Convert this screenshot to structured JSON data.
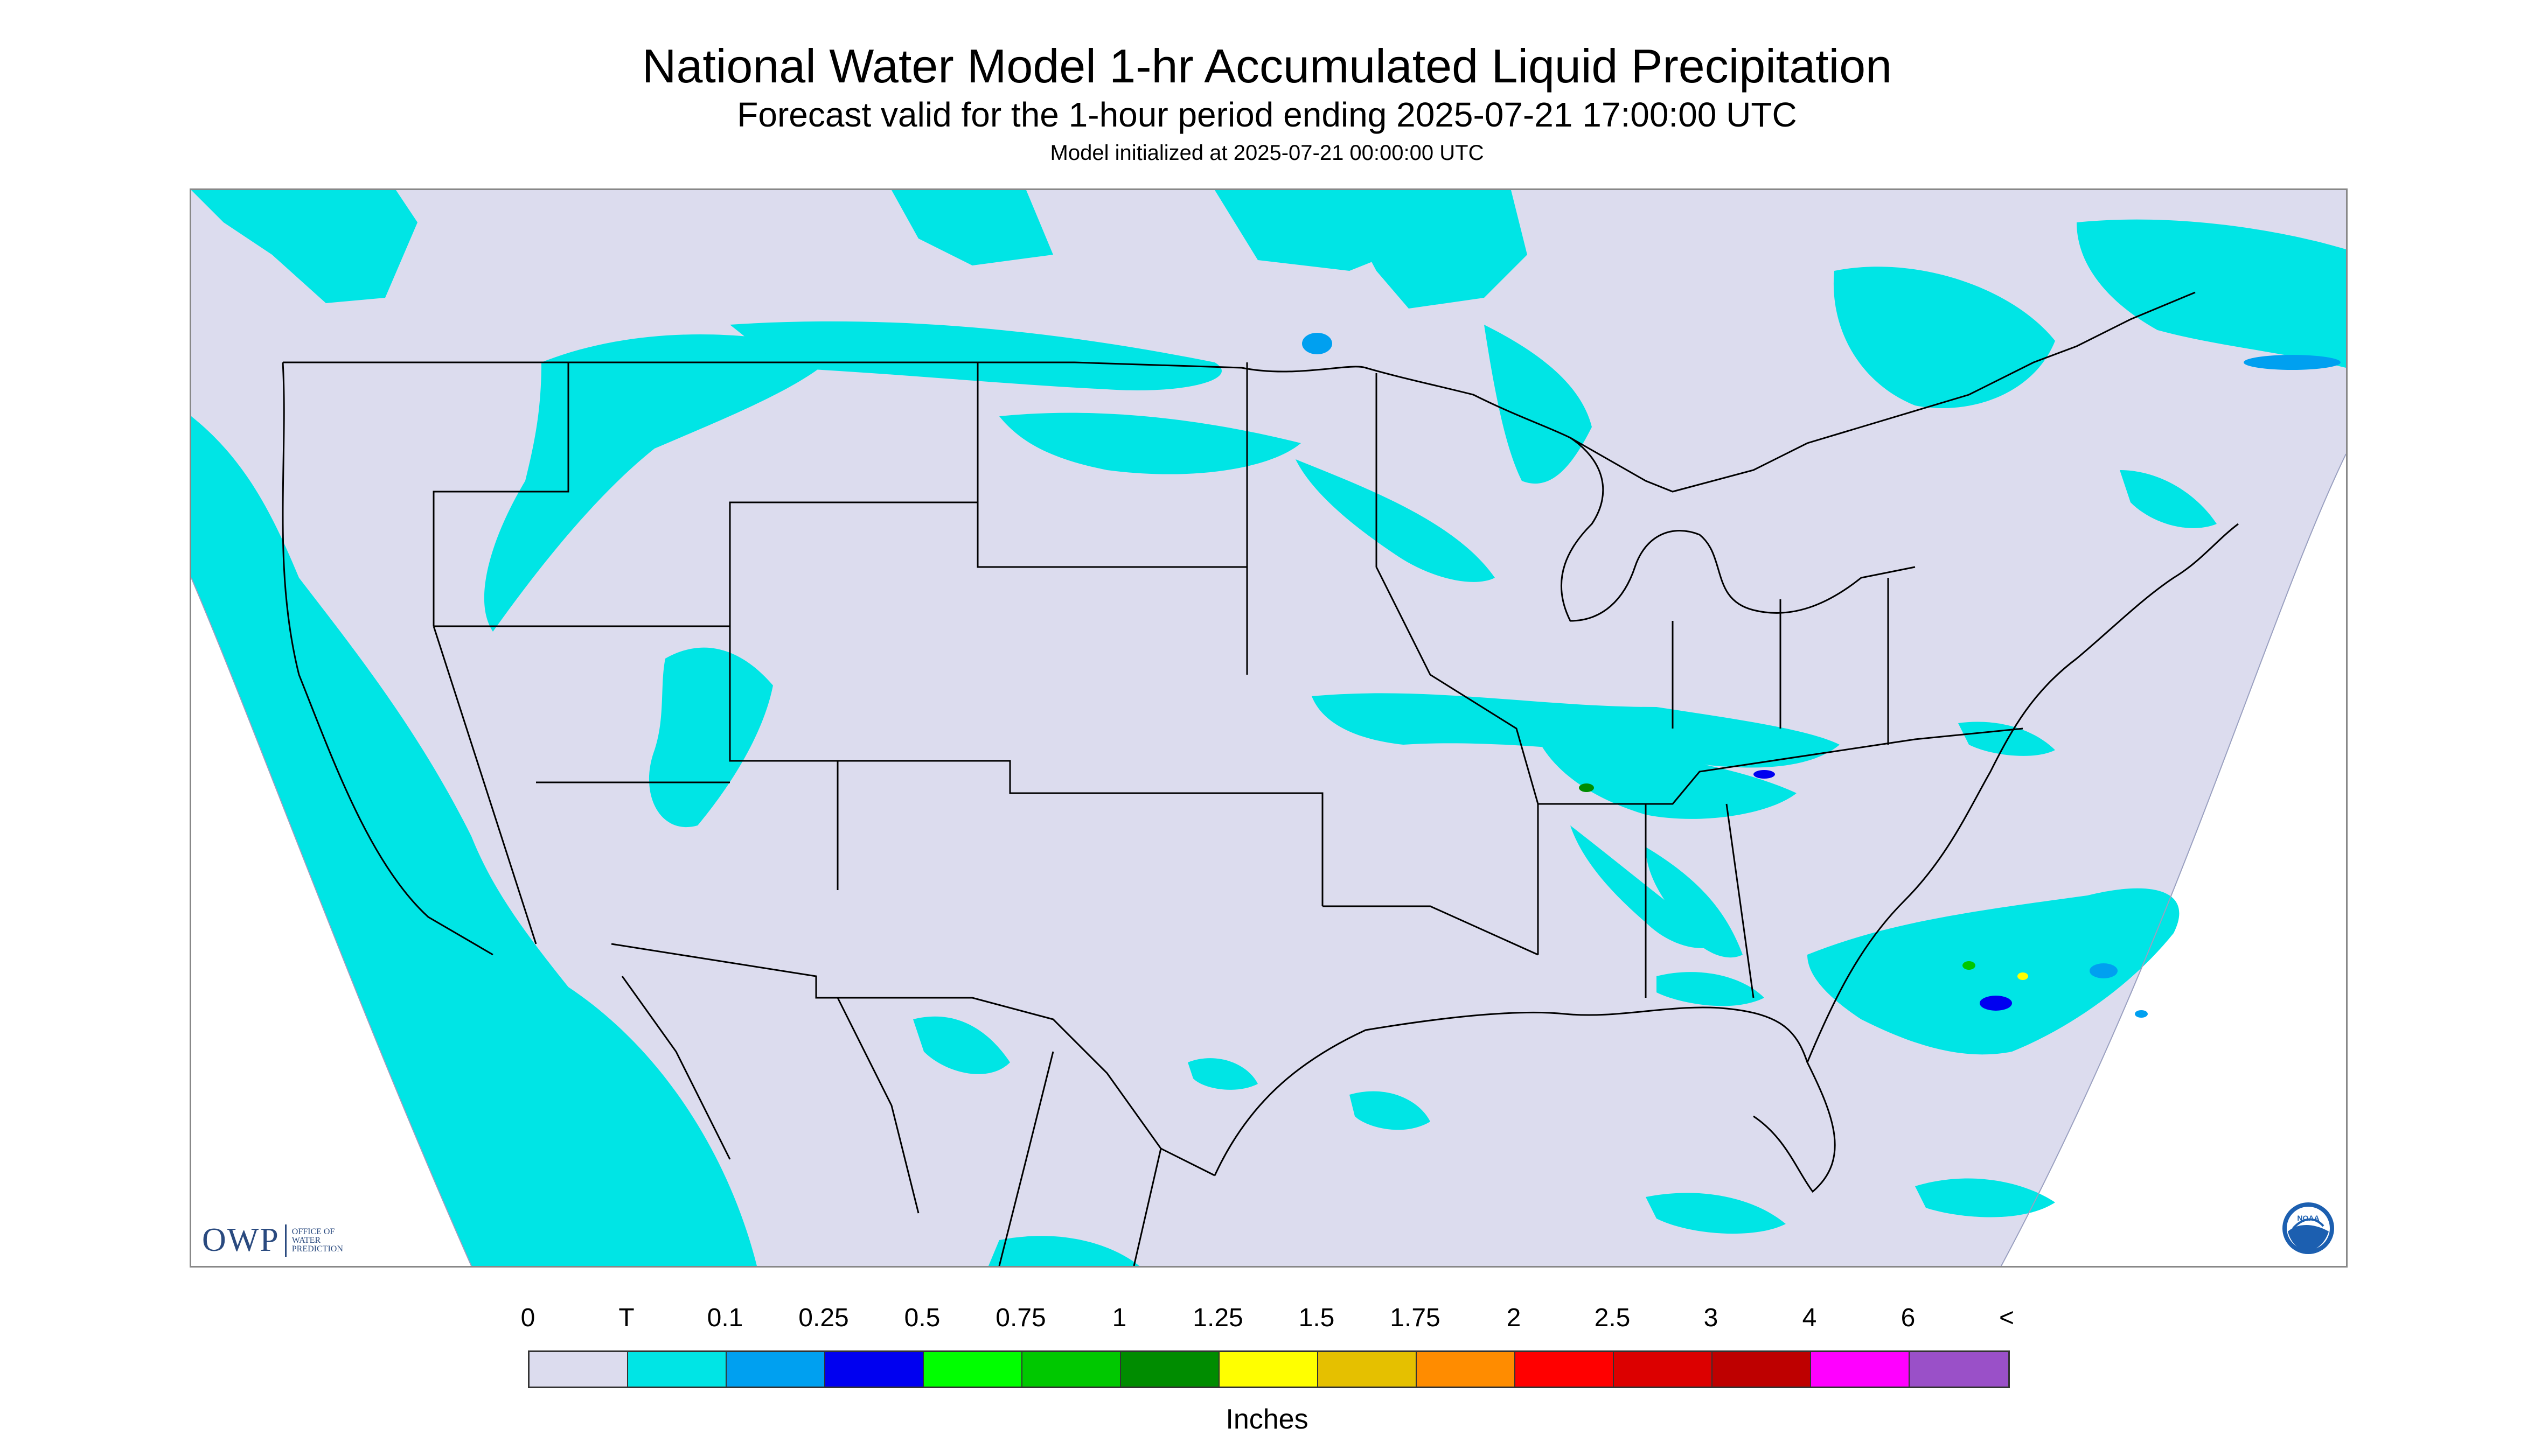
{
  "header": {
    "title": "National Water Model 1-hr Accumulated Liquid Precipitation",
    "subtitle": "Forecast valid for the 1-hour period ending 2025-07-21 17:00:00 UTC",
    "init": "Model initialized at 2025-07-21 00:00:00 UTC"
  },
  "map": {
    "logo": {
      "big": "OWP",
      "line1": "OFFICE OF",
      "line2": "WATER",
      "line3": "PREDICTION"
    },
    "noaa_label": "NOAA",
    "background_color": "#ffffff",
    "domain_color": "#dcdcee",
    "boundary_color": "#000000"
  },
  "legend": {
    "labels": [
      "0",
      "T",
      "0.1",
      "0.25",
      "0.5",
      "0.75",
      "1",
      "1.25",
      "1.5",
      "1.75",
      "2",
      "2.5",
      "3",
      "4",
      "6",
      "<"
    ],
    "colors": [
      "#dcdcee",
      "#00e5e5",
      "#00a0f0",
      "#0000f0",
      "#00ff00",
      "#00c800",
      "#008c00",
      "#ffff00",
      "#e5c000",
      "#ff8c00",
      "#ff0000",
      "#dc0000",
      "#be0000",
      "#ff00ff",
      "#9a50c8"
    ],
    "units": "Inches"
  }
}
